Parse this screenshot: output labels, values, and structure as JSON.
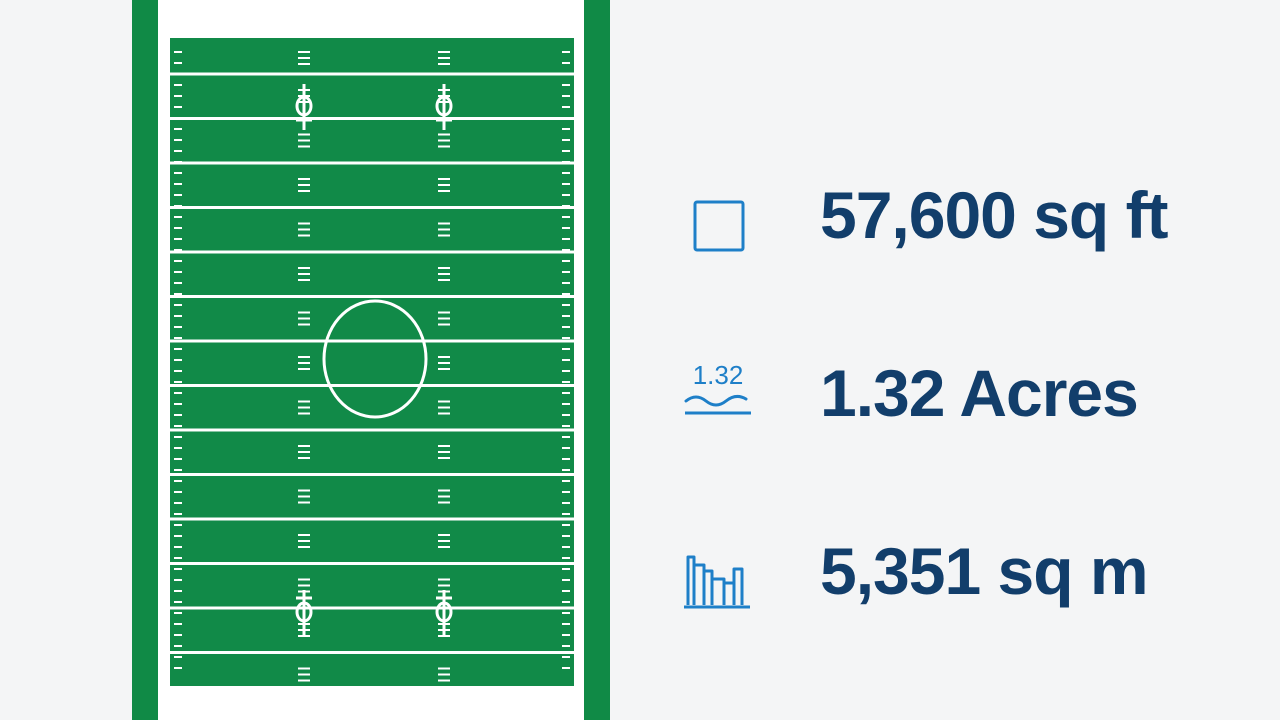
{
  "colors": {
    "field_green": "#118a48",
    "field_border": "#108a46",
    "value_text": "#123e6b",
    "icon_blue": "#1e7fc8",
    "background": "#f4f5f6"
  },
  "field": {
    "yard_numbers": [
      "",
      "",
      "",
      "",
      ""
    ]
  },
  "stats": [
    {
      "icon": "square-icon",
      "icon_text": "",
      "value": "57,600 sq ft"
    },
    {
      "icon": "acres-wave-icon",
      "icon_text": "1.32",
      "value": "1.32 Acres"
    },
    {
      "icon": "bar-chart-icon",
      "icon_text": "",
      "value": "5,351 sq m"
    }
  ]
}
